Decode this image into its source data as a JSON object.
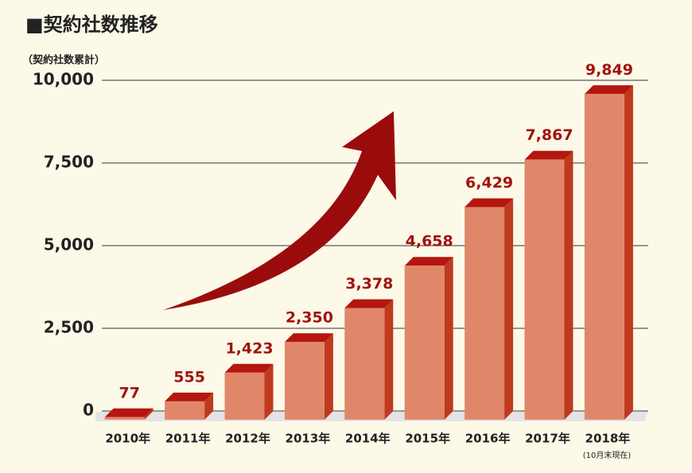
{
  "chart_data": {
    "type": "bar",
    "title": "■契約社数推移",
    "y_label": "（契約社数累計）",
    "categories": [
      "2010年",
      "2011年",
      "2012年",
      "2013年",
      "2014年",
      "2015年",
      "2016年",
      "2017年",
      "2018年"
    ],
    "category_note": "(10月末現在)",
    "values": [
      77,
      555,
      1423,
      2350,
      3378,
      4658,
      6429,
      7867,
      9849
    ],
    "value_labels": [
      "77",
      "555",
      "1,423",
      "2,350",
      "3,378",
      "4,658",
      "6,429",
      "7,867",
      "9,849"
    ],
    "color": "#e0876a",
    "ylim": [
      0,
      10000
    ],
    "yticks": [
      0,
      {
        "value": 2500,
        "label": "2,500"
      },
      {
        "value": 5000,
        "label": "5,000"
      },
      {
        "value": 7500,
        "label": "7,500"
      },
      {
        "value": 10000,
        "label": "10,000"
      }
    ],
    "grid": true
  }
}
